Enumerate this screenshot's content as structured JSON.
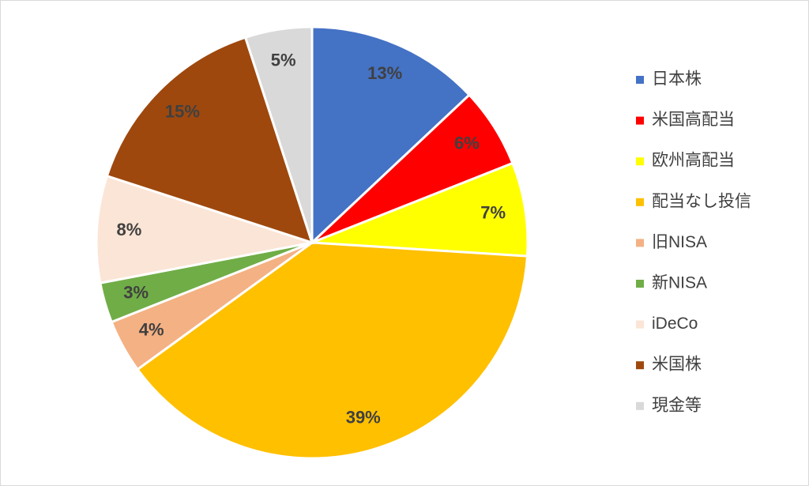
{
  "chart_data": {
    "type": "pie",
    "categories": [
      "日本株",
      "米国高配当",
      "欧州高配当",
      "配当なし投信",
      "旧NISA",
      "新NISA",
      "iDeCo",
      "米国株",
      "現金等"
    ],
    "values": [
      13,
      6,
      7,
      39,
      4,
      3,
      8,
      15,
      5
    ],
    "value_labels": [
      "13%",
      "6%",
      "7%",
      "39%",
      "4%",
      "3%",
      "8%",
      "15%",
      "5%"
    ],
    "colors": [
      "#4472c4",
      "#ff0000",
      "#ffff00",
      "#ffc000",
      "#f4b183",
      "#70ad47",
      "#fbe5d6",
      "#9e480e",
      "#d9d9d9"
    ],
    "legend": "right"
  }
}
